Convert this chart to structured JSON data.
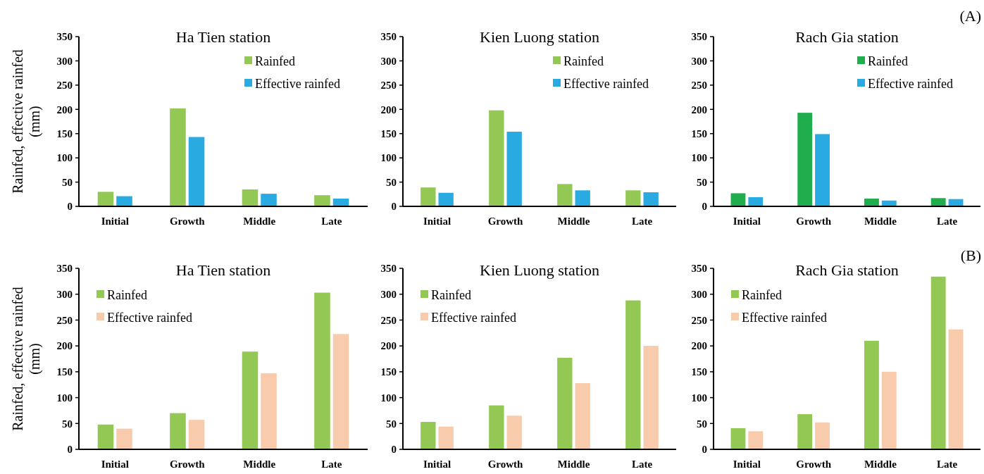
{
  "chart_data": [
    {
      "type": "bar",
      "title": "Ha Tien station",
      "ylabel": "Rainfed, effective rainfed (mm)",
      "categories": [
        "Initial",
        "Growth",
        "Middle",
        "Late"
      ],
      "series": [
        {
          "name": "Rainfed",
          "color": "#92c853",
          "values": [
            30,
            202,
            35,
            23
          ]
        },
        {
          "name": "Effective rainfed",
          "color": "#29abe2",
          "values": [
            21,
            143,
            26,
            16
          ]
        }
      ],
      "ylim": [
        0,
        350
      ],
      "yticks": [
        0,
        50,
        100,
        150,
        200,
        250,
        300,
        350
      ],
      "legend": "top right",
      "grid": false
    },
    {
      "type": "bar",
      "title": "Kien Luong station",
      "categories": [
        "Initial",
        "Growth",
        "Middle",
        "Late"
      ],
      "series": [
        {
          "name": "Rainfed",
          "color": "#92c853",
          "values": [
            39,
            198,
            46,
            33
          ]
        },
        {
          "name": "Effective rainfed",
          "color": "#29abe2",
          "values": [
            28,
            154,
            33,
            29
          ]
        }
      ],
      "ylim": [
        0,
        350
      ],
      "yticks": [
        0,
        50,
        100,
        150,
        200,
        250,
        300,
        350
      ],
      "legend": "top right",
      "grid": false
    },
    {
      "type": "bar",
      "title": "Rach Gia station",
      "annotations": [
        "(A)"
      ],
      "categories": [
        "Initial",
        "Growth",
        "Middle",
        "Late"
      ],
      "series": [
        {
          "name": "Rainfed",
          "color": "#1fad4d",
          "values": [
            27,
            193,
            16,
            17
          ]
        },
        {
          "name": "Effective rainfed",
          "color": "#29abe2",
          "values": [
            19,
            149,
            12,
            15
          ]
        }
      ],
      "ylim": [
        0,
        350
      ],
      "yticks": [
        0,
        50,
        100,
        150,
        200,
        250,
        300,
        350
      ],
      "legend": "top right",
      "grid": false
    },
    {
      "type": "bar",
      "title": "Ha Tien station",
      "ylabel": "Rainfed, effective rainfed (mm)",
      "categories": [
        "Initial",
        "Growth",
        "Middle",
        "Late"
      ],
      "series": [
        {
          "name": "Rainfed",
          "color": "#92c853",
          "values": [
            48,
            70,
            189,
            303
          ]
        },
        {
          "name": "Effective rainfed",
          "color": "#f8cbad",
          "values": [
            40,
            57,
            147,
            223
          ]
        }
      ],
      "ylim": [
        0,
        350
      ],
      "yticks": [
        0,
        50,
        100,
        150,
        200,
        250,
        300,
        350
      ],
      "legend": "top left",
      "grid": false
    },
    {
      "type": "bar",
      "title": "Kien Luong station",
      "categories": [
        "Initial",
        "Growth",
        "Middle",
        "Late"
      ],
      "series": [
        {
          "name": "Rainfed",
          "color": "#92c853",
          "values": [
            53,
            85,
            177,
            288
          ]
        },
        {
          "name": "Effective rainfed",
          "color": "#f8cbad",
          "values": [
            44,
            65,
            128,
            200
          ]
        }
      ],
      "ylim": [
        0,
        350
      ],
      "yticks": [
        0,
        50,
        100,
        150,
        200,
        250,
        300,
        350
      ],
      "legend": "top left",
      "grid": false
    },
    {
      "type": "bar",
      "title": "Rach Gia station",
      "annotations": [
        "(B)"
      ],
      "categories": [
        "Initial",
        "Growth",
        "Middle",
        "Late"
      ],
      "series": [
        {
          "name": "Rainfed",
          "color": "#92c853",
          "values": [
            41,
            68,
            210,
            334
          ]
        },
        {
          "name": "Effective rainfed",
          "color": "#f8cbad",
          "values": [
            35,
            52,
            150,
            232
          ]
        }
      ],
      "ylim": [
        0,
        350
      ],
      "yticks": [
        0,
        50,
        100,
        150,
        200,
        250,
        300,
        350
      ],
      "legend": "top left",
      "grid": false
    }
  ]
}
